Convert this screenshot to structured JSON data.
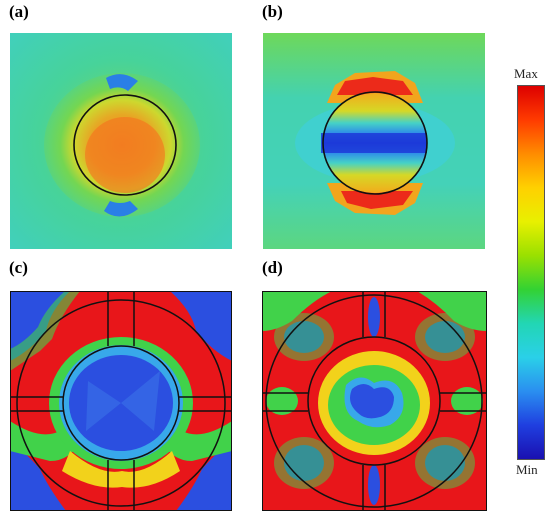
{
  "panels": [
    {
      "label": "(a)"
    },
    {
      "label": "(b)"
    },
    {
      "label": "(c)"
    },
    {
      "label": "(d)"
    }
  ],
  "colorbar": {
    "max_label": "Max",
    "min_label": "Min",
    "stops": [
      "#dd0000",
      "#ff3b00",
      "#ff8c00",
      "#ffd000",
      "#e8f000",
      "#9ae000",
      "#33d233",
      "#22d6b4",
      "#2ad0e8",
      "#2a8ff0",
      "#1f3fe0",
      "#1a10b0"
    ]
  },
  "colors": {
    "red": "#e8161a",
    "orange": "#f77a22",
    "yellow": "#f2d21b",
    "green": "#41d24a",
    "cyan": "#46d3c4",
    "light_blue": "#38a8ea",
    "blue": "#2b4fe0",
    "deep_blue": "#1c2ad2",
    "outline": "#111111"
  }
}
